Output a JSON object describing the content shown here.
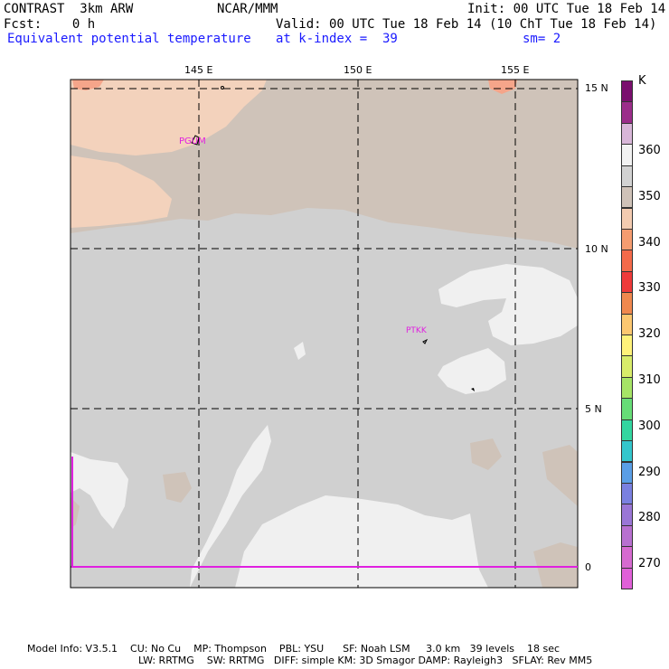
{
  "header": {
    "model": "CONTRAST  3km ARW",
    "org": "NCAR/MMM",
    "init": "Init: 00 UTC Tue 18 Feb 14",
    "fcst": "Fcst:    0 h",
    "valid": "Valid: 00 UTC Tue 18 Feb 14 (10 ChT Tue 18 Feb 14)",
    "field": "Equivalent potential temperature",
    "level": "at k-index =  39",
    "smooth": "sm= 2"
  },
  "map": {
    "lon_labels": [
      "145 E",
      "150 E",
      "155 E"
    ],
    "lat_labels": [
      "15 N",
      "10 N",
      "5 N",
      "0"
    ],
    "stations": [
      "PGUM",
      "PTKK"
    ]
  },
  "legend": {
    "unit": "K",
    "labels": [
      "360",
      "350",
      "340",
      "330",
      "320",
      "310",
      "300",
      "290",
      "280",
      "270"
    ],
    "colors": [
      "#7a0f6e",
      "#9b2d8a",
      "#d8b6d8",
      "#f2f2f2",
      "#d2d2d2",
      "#cfc2b8",
      "#f3cbb0",
      "#f59c70",
      "#f46a4a",
      "#ee3a3a",
      "#f0884e",
      "#fcc770",
      "#fff27a",
      "#d8ec6a",
      "#a6e466",
      "#66dd77",
      "#33d6a0",
      "#33c6cc",
      "#5a9ee6",
      "#7a80e0",
      "#9a76d6",
      "#b870d0",
      "#d66ad0",
      "#e060d8"
    ]
  },
  "footer": {
    "line1": "Model Info: V3.5.1    CU: No Cu    MP: Thompson    PBL: YSU      SF: Noah LSM     3.0 km   39 levels    18 sec",
    "line2": "LW: RRTMG    SW: RRTMG   DIFF: simple KM: 3D Smagor DAMP: Rayleigh3   SFLAY: Rev MM5"
  }
}
